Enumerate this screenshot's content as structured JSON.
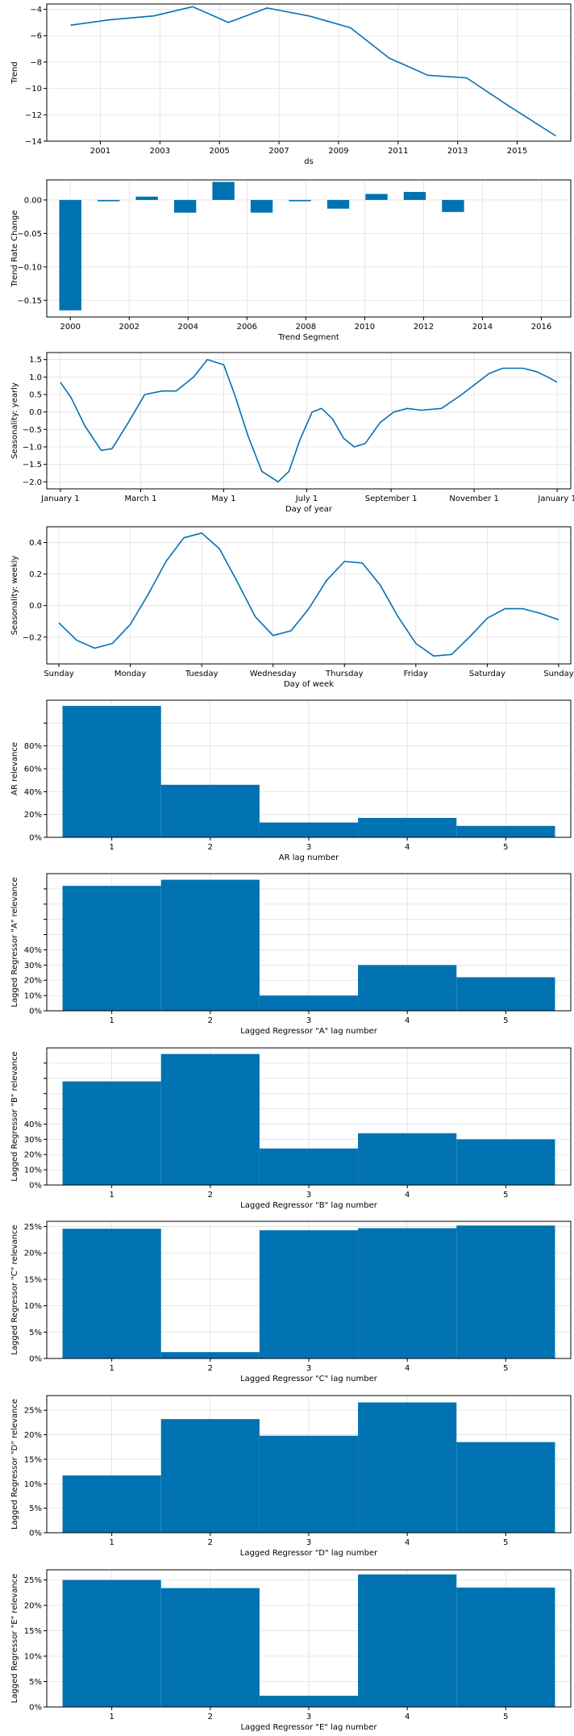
{
  "colors": {
    "series": "#0072B2",
    "grid": "#e0e0e0",
    "axis": "#000000"
  },
  "chart_data": [
    {
      "type": "line",
      "xlabel": "ds",
      "ylabel": "Trend",
      "grid": true,
      "ylim": [
        -14,
        -3.6
      ],
      "xlim": [
        1999.2,
        2016.8
      ],
      "xticks": [
        2001,
        2003,
        2005,
        2007,
        2009,
        2011,
        2013,
        2015
      ],
      "xtick_labels": [
        "2001",
        "2003",
        "2005",
        "2007",
        "2009",
        "2011",
        "2013",
        "2015"
      ],
      "yticks": [
        -4,
        -6,
        -8,
        -10,
        -12,
        -14
      ],
      "ytick_labels": [
        "−4",
        "−6",
        "−8",
        "−10",
        "−12",
        "−14"
      ],
      "x": [
        2000.0,
        2001.3,
        2002.8,
        2004.1,
        2005.3,
        2006.6,
        2008.0,
        2009.4,
        2010.7,
        2012.0,
        2013.3,
        2014.7,
        2016.3
      ],
      "values": [
        -5.2,
        -4.8,
        -4.5,
        -3.8,
        -5.0,
        -3.9,
        -4.5,
        -5.4,
        -7.7,
        -9.0,
        -9.2,
        -11.3,
        -13.6
      ]
    },
    {
      "type": "bar",
      "xlabel": "Trend Segment",
      "ylabel": "Trend Rate Change",
      "grid": true,
      "ylim": [
        -0.175,
        0.03
      ],
      "xlim": [
        1999.2,
        2017.0
      ],
      "xticks": [
        2000,
        2002,
        2004,
        2006,
        2008,
        2010,
        2012,
        2014,
        2016
      ],
      "xtick_labels": [
        "2000",
        "2002",
        "2004",
        "2006",
        "2008",
        "2010",
        "2012",
        "2014",
        "2016"
      ],
      "yticks": [
        0.0,
        -0.05,
        -0.1,
        -0.15
      ],
      "ytick_labels": [
        "0.00",
        "−0.05",
        "−0.10",
        "−0.15"
      ],
      "bar_width": 0.75,
      "x": [
        2000.0,
        2001.3,
        2002.6,
        2003.9,
        2005.2,
        2006.5,
        2007.8,
        2009.1,
        2010.4,
        2011.7,
        2013.0
      ],
      "values": [
        -0.165,
        -0.002,
        0.005,
        -0.019,
        0.027,
        -0.019,
        -0.002,
        -0.013,
        0.009,
        0.012,
        -0.018
      ]
    },
    {
      "type": "line",
      "xlabel": "Day of year",
      "ylabel": "Seasonality: yearly",
      "grid": true,
      "ylim": [
        -2.2,
        1.7
      ],
      "xlim": [
        -10,
        375
      ],
      "xticks": [
        0,
        59,
        120,
        181,
        243,
        304,
        365
      ],
      "xtick_labels": [
        "January 1",
        "March 1",
        "May 1",
        "July 1",
        "September 1",
        "November 1",
        "January 1"
      ],
      "yticks": [
        1.5,
        1.0,
        0.5,
        0.0,
        -0.5,
        -1.0,
        -1.5,
        -2.0
      ],
      "ytick_labels": [
        "1.5",
        "1.0",
        "0.5",
        "0.0",
        "−0.5",
        "−1.0",
        "−1.5",
        "−2.0"
      ],
      "x": [
        0,
        8,
        18,
        30,
        38,
        50,
        62,
        75,
        85,
        98,
        108,
        120,
        128,
        138,
        148,
        160,
        168,
        176,
        185,
        192,
        200,
        208,
        216,
        224,
        235,
        245,
        255,
        265,
        280,
        295,
        305,
        315,
        325,
        340,
        350,
        358,
        365
      ],
      "values": [
        0.85,
        0.4,
        -0.4,
        -1.1,
        -1.05,
        -0.3,
        0.5,
        0.6,
        0.6,
        1.0,
        1.5,
        1.35,
        0.5,
        -0.7,
        -1.7,
        -2.0,
        -1.7,
        -0.8,
        0.0,
        0.1,
        -0.2,
        -0.75,
        -1.0,
        -0.9,
        -0.3,
        0.0,
        0.1,
        0.05,
        0.1,
        0.5,
        0.8,
        1.1,
        1.25,
        1.25,
        1.15,
        1.0,
        0.85
      ]
    },
    {
      "type": "line",
      "xlabel": "Day of week",
      "ylabel": "Seasonality: weekly",
      "grid": true,
      "ylim": [
        -0.37,
        0.5
      ],
      "xlim": [
        -0.17,
        7.17
      ],
      "xticks": [
        0,
        1,
        2,
        3,
        4,
        5,
        6,
        7
      ],
      "xtick_labels": [
        "Sunday",
        "Monday",
        "Tuesday",
        "Wednesday",
        "Thursday",
        "Friday",
        "Saturday",
        "Sunday"
      ],
      "yticks": [
        0.4,
        0.2,
        0.0,
        -0.2
      ],
      "ytick_labels": [
        "0.4",
        "0.2",
        "0.0",
        "−0.2"
      ],
      "x": [
        0.0,
        0.25,
        0.5,
        0.75,
        1.0,
        1.25,
        1.5,
        1.75,
        2.0,
        2.25,
        2.5,
        2.75,
        3.0,
        3.25,
        3.5,
        3.75,
        4.0,
        4.25,
        4.5,
        4.75,
        5.0,
        5.25,
        5.5,
        5.75,
        6.0,
        6.25,
        6.5,
        6.75,
        7.0
      ],
      "values": [
        -0.11,
        -0.22,
        -0.27,
        -0.24,
        -0.12,
        0.07,
        0.28,
        0.43,
        0.46,
        0.36,
        0.15,
        -0.07,
        -0.19,
        -0.16,
        -0.02,
        0.16,
        0.28,
        0.27,
        0.13,
        -0.07,
        -0.24,
        -0.32,
        -0.31,
        -0.2,
        -0.08,
        -0.02,
        -0.02,
        -0.05,
        -0.09
      ]
    },
    {
      "type": "bar",
      "xlabel": "AR lag number",
      "ylabel": "AR relevance",
      "grid": true,
      "ylim": [
        0,
        1.2
      ],
      "xlim": [
        0.34,
        5.66
      ],
      "xticks": [
        1,
        2,
        3,
        4,
        5
      ],
      "xtick_labels": [
        "1",
        "2",
        "3",
        "4",
        "5"
      ],
      "yticks": [
        0.0,
        0.2,
        0.4,
        0.6,
        0.8,
        1.0
      ],
      "ytick_labels": [
        "0%",
        "20%",
        "40%",
        "60%",
        "80%",
        ""
      ],
      "bar_width": 1.0,
      "x": [
        1,
        2,
        3,
        4,
        5
      ],
      "values": [
        1.15,
        0.46,
        0.13,
        0.17,
        0.1
      ]
    },
    {
      "type": "bar",
      "xlabel": "Lagged Regressor \"A\" lag number",
      "ylabel": "Lagged Regressor \"A\" relevance",
      "grid": true,
      "ylim": [
        0,
        0.9
      ],
      "xlim": [
        0.34,
        5.66
      ],
      "xticks": [
        1,
        2,
        3,
        4,
        5
      ],
      "xtick_labels": [
        "1",
        "2",
        "3",
        "4",
        "5"
      ],
      "yticks": [
        0.0,
        0.1,
        0.2,
        0.3,
        0.4,
        0.5,
        0.6,
        0.7,
        0.8
      ],
      "ytick_labels": [
        "0%",
        "10%",
        "20%",
        "30%",
        "40%",
        "",
        "",
        "",
        ""
      ],
      "bar_width": 1.0,
      "x": [
        1,
        2,
        3,
        4,
        5
      ],
      "values": [
        0.82,
        0.86,
        0.1,
        0.3,
        0.22
      ]
    },
    {
      "type": "bar",
      "xlabel": "Lagged Regressor \"B\" lag number",
      "ylabel": "Lagged Regressor \"B\" relevance",
      "grid": true,
      "ylim": [
        0,
        0.9
      ],
      "xlim": [
        0.34,
        5.66
      ],
      "xticks": [
        1,
        2,
        3,
        4,
        5
      ],
      "xtick_labels": [
        "1",
        "2",
        "3",
        "4",
        "5"
      ],
      "yticks": [
        0.0,
        0.1,
        0.2,
        0.3,
        0.4,
        0.5,
        0.6,
        0.7,
        0.8
      ],
      "ytick_labels": [
        "0%",
        "10%",
        "20%",
        "30%",
        "40%",
        "",
        "",
        "",
        ""
      ],
      "bar_width": 1.0,
      "x": [
        1,
        2,
        3,
        4,
        5
      ],
      "values": [
        0.68,
        0.86,
        0.24,
        0.34,
        0.3
      ]
    },
    {
      "type": "bar",
      "xlabel": "Lagged Regressor \"C\" lag number",
      "ylabel": "Lagged Regressor \"C\" relevance",
      "grid": true,
      "ylim": [
        0,
        0.26
      ],
      "xlim": [
        0.34,
        5.66
      ],
      "xticks": [
        1,
        2,
        3,
        4,
        5
      ],
      "xtick_labels": [
        "1",
        "2",
        "3",
        "4",
        "5"
      ],
      "yticks": [
        0.0,
        0.05,
        0.1,
        0.15,
        0.2,
        0.25
      ],
      "ytick_labels": [
        "0%",
        "5%",
        "10%",
        "15%",
        "20%",
        "25%"
      ],
      "bar_width": 1.0,
      "x": [
        1,
        2,
        3,
        4,
        5
      ],
      "values": [
        0.246,
        0.012,
        0.243,
        0.247,
        0.252
      ]
    },
    {
      "type": "bar",
      "xlabel": "Lagged Regressor \"D\" lag number",
      "ylabel": "Lagged Regressor \"D\" relevance",
      "grid": true,
      "ylim": [
        0,
        0.28
      ],
      "xlim": [
        0.34,
        5.66
      ],
      "xticks": [
        1,
        2,
        3,
        4,
        5
      ],
      "xtick_labels": [
        "1",
        "2",
        "3",
        "4",
        "5"
      ],
      "yticks": [
        0.0,
        0.05,
        0.1,
        0.15,
        0.2,
        0.25
      ],
      "ytick_labels": [
        "0%",
        "5%",
        "10%",
        "15%",
        "20%",
        "25%"
      ],
      "bar_width": 1.0,
      "x": [
        1,
        2,
        3,
        4,
        5
      ],
      "values": [
        0.117,
        0.232,
        0.198,
        0.266,
        0.185
      ]
    },
    {
      "type": "bar",
      "xlabel": "Lagged Regressor \"E\" lag number",
      "ylabel": "Lagged Regressor \"E\" relevance",
      "grid": true,
      "ylim": [
        0,
        0.27
      ],
      "xlim": [
        0.34,
        5.66
      ],
      "xticks": [
        1,
        2,
        3,
        4,
        5
      ],
      "xtick_labels": [
        "1",
        "2",
        "3",
        "4",
        "5"
      ],
      "yticks": [
        0.0,
        0.05,
        0.1,
        0.15,
        0.2,
        0.25
      ],
      "ytick_labels": [
        "0%",
        "5%",
        "10%",
        "15%",
        "20%",
        "25%"
      ],
      "bar_width": 1.0,
      "x": [
        1,
        2,
        3,
        4,
        5
      ],
      "values": [
        0.25,
        0.234,
        0.022,
        0.261,
        0.235
      ]
    }
  ]
}
